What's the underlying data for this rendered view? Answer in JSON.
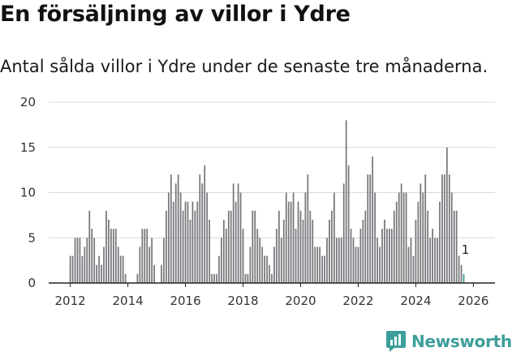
{
  "header": {
    "title": "En försäljning av villor i Ydre",
    "subtitle": "Antal sålda villor i Ydre under de senaste tre månaderna."
  },
  "brand": {
    "name": "Newsworthy"
  },
  "colors": {
    "bar": "#78777c",
    "highlight": "#3d9e99",
    "grid": "#d9d9d9",
    "axis": "#222222"
  },
  "chart_data": {
    "type": "bar",
    "title": "En försäljning av villor i Ydre",
    "subtitle": "Antal sålda villor i Ydre under de senaste tre månaderna.",
    "xlabel": "",
    "ylabel": "",
    "ylim": [
      0,
      20
    ],
    "yticks": [
      0,
      5,
      10,
      15,
      20
    ],
    "xlim": [
      2011.25,
      2026.75
    ],
    "xticks": [
      2012,
      2014,
      2016,
      2018,
      2020,
      2022,
      2024,
      2026
    ],
    "x_start": 2012.0,
    "x_step": 0.08333,
    "values": [
      3,
      3,
      5,
      5,
      5,
      3,
      4,
      5,
      8,
      6,
      5,
      2,
      3,
      2,
      4,
      8,
      7,
      6,
      6,
      6,
      4,
      3,
      3,
      1,
      0,
      0,
      0,
      0,
      1,
      4,
      6,
      6,
      6,
      4,
      5,
      2,
      0,
      0,
      2,
      5,
      8,
      10,
      12,
      9,
      11,
      12,
      10,
      8,
      9,
      9,
      7,
      9,
      8,
      9,
      12,
      11,
      13,
      10,
      7,
      1,
      1,
      1,
      3,
      5,
      7,
      6,
      8,
      8,
      11,
      9,
      11,
      10,
      6,
      1,
      1,
      4,
      8,
      8,
      6,
      5,
      4,
      3,
      3,
      2,
      1,
      4,
      6,
      8,
      5,
      7,
      10,
      9,
      9,
      10,
      6,
      9,
      8,
      7,
      10,
      12,
      8,
      7,
      4,
      4,
      4,
      3,
      3,
      5,
      7,
      8,
      10,
      5,
      5,
      5,
      11,
      18,
      13,
      6,
      5,
      4,
      4,
      6,
      7,
      8,
      12,
      12,
      14,
      10,
      5,
      4,
      6,
      7,
      6,
      6,
      6,
      8,
      9,
      10,
      11,
      10,
      10,
      4,
      5,
      3,
      7,
      9,
      11,
      10,
      12,
      8,
      5,
      6,
      5,
      5,
      9,
      12,
      12,
      15,
      12,
      10,
      8,
      8,
      3,
      2,
      1
    ],
    "highlight_index": 164,
    "highlight_label": "1"
  }
}
